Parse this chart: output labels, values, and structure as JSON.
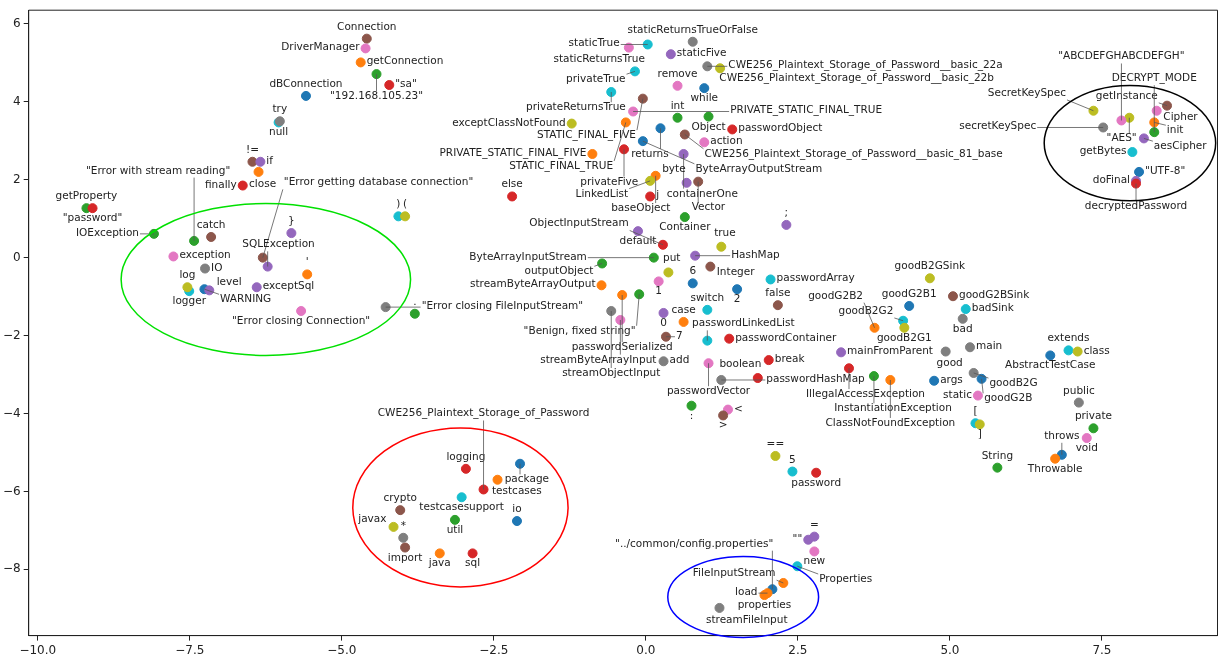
{
  "chart_data": {
    "type": "scatter",
    "marker": "circle",
    "grid": false,
    "legend": false,
    "xlim": [
      -10.15,
      9.4
    ],
    "ylim": [
      -9.7,
      6.35
    ],
    "xticks": [
      {
        "value": -10,
        "label": "−10.0"
      },
      {
        "value": -7.5,
        "label": "−7.5"
      },
      {
        "value": -5,
        "label": "−5.0"
      },
      {
        "value": -2.5,
        "label": "−2.5"
      },
      {
        "value": 0,
        "label": "0.0"
      },
      {
        "value": 2.5,
        "label": "2.5"
      },
      {
        "value": 5,
        "label": "5.0"
      },
      {
        "value": 7.5,
        "label": "7.5"
      }
    ],
    "yticks": [
      {
        "value": -8,
        "label": "−8"
      },
      {
        "value": -6,
        "label": "−6"
      },
      {
        "value": -4,
        "label": "−4"
      },
      {
        "value": -2,
        "label": "−2"
      },
      0,
      2,
      4,
      6
    ],
    "x": [
      -4.59,
      -4.61,
      -4.69,
      -4.43,
      -4.22,
      -5.59,
      -6.04,
      -6.02,
      -6.47,
      -6.34,
      -6.37,
      -6.63,
      -9.2,
      -9.1,
      -4.07,
      -3.96,
      -8.09,
      -7.43,
      -7.15,
      -5.83,
      -7.77,
      -6.3,
      -6.22,
      -7.25,
      -5.57,
      -7.51,
      -7.26,
      -7.18,
      -7.54,
      -6.4,
      -5.67,
      -4.28,
      -3.8,
      0.77,
      0.03,
      -0.28,
      0.41,
      1.01,
      1.22,
      -0.18,
      0.52,
      0.96,
      -0.57,
      -0.05,
      -0.21,
      -1.22,
      -0.33,
      0.52,
      1.03,
      1.42,
      0.24,
      0.64,
      0.96,
      -0.05,
      -0.36,
      -0.88,
      0.62,
      0.16,
      0.07,
      0.86,
      0.67,
      0.07,
      -2.2,
      0.64,
      -0.13,
      2.31,
      0.28,
      1.24,
      0.13,
      0.81,
      -0.72,
      1.06,
      0.37,
      0.21,
      0.77,
      2.05,
      1.5,
      2.17,
      -0.73,
      -0.11,
      -0.39,
      1.01,
      0.29,
      0.62,
      -0.57,
      -0.42,
      0.33,
      1.01,
      1.37,
      0.29,
      1.03,
      1.24,
      2.02,
      1.84,
      3.21,
      3.34,
      3.75,
      4.02,
      0.75,
      1.35,
      1.27,
      2.13,
      2.41,
      2.8,
      2.67,
      2.77,
      2.77,
      2.49,
      2.26,
      2.08,
      1.95,
      2.0,
      1.21,
      -2.07,
      -2.96,
      -2.44,
      -2.67,
      -3.03,
      -3.14,
      -2.12,
      -3.39,
      -2.85,
      -4.04,
      -4.15,
      -3.99,
      -3.96,
      8.57,
      8.4,
      8.36,
      8.36,
      8.19,
      8.0,
      8.11,
      8.06,
      8.06,
      7.95,
      7.82,
      7.36,
      7.52,
      4.67,
      5.05,
      4.33,
      5.26,
      5.21,
      4.23,
      4.25,
      3.76,
      4.93,
      5.33,
      6.65,
      6.95,
      7.1,
      4.74,
      5.39,
      5.52,
      5.46,
      5.42,
      5.49,
      7.12,
      7.36,
      7.25,
      6.84,
      6.73,
      5.78
    ],
    "values": [
      5.62,
      5.37,
      5.01,
      4.71,
      4.43,
      4.15,
      3.47,
      3.5,
      2.46,
      2.46,
      2.2,
      1.85,
      1.27,
      1.27,
      1.06,
      1.06,
      0.61,
      0.43,
      0.53,
      0.63,
      0.03,
      0.0,
      -0.23,
      -0.28,
      -0.43,
      -0.86,
      -0.81,
      -0.84,
      -0.76,
      -0.76,
      -1.37,
      -1.27,
      -1.44,
      5.54,
      5.47,
      5.39,
      5.22,
      4.91,
      4.86,
      4.78,
      4.41,
      4.35,
      4.25,
      4.08,
      3.75,
      3.44,
      3.47,
      3.59,
      3.62,
      3.29,
      3.32,
      3.16,
      2.96,
      2.99,
      2.78,
      2.66,
      2.66,
      2.1,
      1.97,
      1.95,
      1.92,
      1.57,
      1.57,
      1.04,
      0.68,
      0.84,
      0.33,
      0.28,
      0.0,
      0.05,
      -0.15,
      -0.23,
      -0.38,
      -0.61,
      -0.66,
      -0.56,
      -0.81,
      -1.22,
      -0.71,
      -0.94,
      -0.96,
      -1.34,
      -1.42,
      -1.65,
      -1.37,
      -1.6,
      -2.03,
      -2.13,
      -2.08,
      -2.66,
      -2.71,
      -3.14,
      -2.63,
      -3.09,
      -2.43,
      -2.84,
      -3.04,
      -3.14,
      -3.8,
      -3.9,
      -4.05,
      -5.09,
      -5.49,
      -5.52,
      -7.24,
      -7.16,
      -7.54,
      -7.92,
      -8.35,
      -8.51,
      -8.66,
      -8.61,
      -8.99,
      -5.29,
      -5.42,
      -5.7,
      -5.95,
      -6.15,
      -6.73,
      -6.76,
      -7.59,
      -7.59,
      -6.48,
      -6.91,
      -7.19,
      -7.44,
      3.9,
      3.77,
      3.47,
      3.22,
      3.06,
      2.71,
      2.2,
      1.97,
      1.9,
      3.59,
      3.52,
      3.77,
      3.34,
      -0.53,
      -0.99,
      -1.24,
      -1.32,
      -1.57,
      -1.62,
      -1.8,
      -1.8,
      -2.41,
      -2.3,
      -2.51,
      -2.38,
      -2.41,
      -3.16,
      -2.96,
      -3.11,
      -3.54,
      -4.25,
      -4.28,
      -3.72,
      -4.38,
      -4.63,
      -5.06,
      -5.16,
      -5.39
    ],
    "colors": [
      "#8c564b",
      "#e377c2",
      "#ff7f0e",
      "#2ca02c",
      "#d62728",
      "#1f77b4",
      "#17becf",
      "#7f7f7f",
      "#8c564b",
      "#9467bd",
      "#ff7f0e",
      "#d62728",
      "#2ca02c",
      "#d62728",
      "#17becf",
      "#bcbd22",
      "#2ca02c",
      "#2ca02c",
      "#8c564b",
      "#9467bd",
      "#e377c2",
      "#8c564b",
      "#9467bd",
      "#7f7f7f",
      "#ff7f0e",
      "#17becf",
      "#1f77b4",
      "#9467bd",
      "#bcbd22",
      "#9467bd",
      "#e377c2",
      "#7f7f7f",
      "#2ca02c",
      "#7f7f7f",
      "#17becf",
      "#e377c2",
      "#9467bd",
      "#7f7f7f",
      "#bcbd22",
      "#17becf",
      "#e377c2",
      "#1f77b4",
      "#17becf",
      "#8c564b",
      "#e377c2",
      "#bcbd22",
      "#ff7f0e",
      "#2ca02c",
      "#2ca02c",
      "#d62728",
      "#1f77b4",
      "#8c564b",
      "#e377c2",
      "#1f77b4",
      "#d62728",
      "#ff7f0e",
      "#9467bd",
      "#ff7f0e",
      "#bcbd22",
      "#8c564b",
      "#9467bd",
      "#d62728",
      "#d62728",
      "#2ca02c",
      "#9467bd",
      "#9467bd",
      "#d62728",
      "#bcbd22",
      "#2ca02c",
      "#9467bd",
      "#2ca02c",
      "#8c564b",
      "#bcbd22",
      "#e377c2",
      "#1f77b4",
      "#17becf",
      "#1f77b4",
      "#8c564b",
      "#ff7f0e",
      "#2ca02c",
      "#ff7f0e",
      "#17becf",
      "#9467bd",
      "#ff7f0e",
      "#7f7f7f",
      "#e377c2",
      "#8c564b",
      "#17becf",
      "#d62728",
      "#7f7f7f",
      "#e377c2",
      "#7f7f7f",
      "#d62728",
      "#d62728",
      "#9467bd",
      "#d62728",
      "#2ca02c",
      "#ff7f0e",
      "#2ca02c",
      "#e377c2",
      "#8c564b",
      "#bcbd22",
      "#17becf",
      "#d62728",
      "#9467bd",
      "#9467bd",
      "#e377c2",
      "#17becf",
      "#ff7f0e",
      "#1f77b4",
      "#ff7f0e",
      "#ff7f0e",
      "#7f7f7f",
      "#1f77b4",
      "#d62728",
      "#ff7f0e",
      "#d62728",
      "#17becf",
      "#2ca02c",
      "#1f77b4",
      "#ff7f0e",
      "#d62728",
      "#8c564b",
      "#bcbd22",
      "#7f7f7f",
      "#8c564b",
      "#8c564b",
      "#e377c2",
      "#ff7f0e",
      "#2ca02c",
      "#9467bd",
      "#17becf",
      "#1f77b4",
      "#9467bd",
      "#d62728",
      "#bcbd22",
      "#e377c2",
      "#bcbd22",
      "#7f7f7f",
      "#bcbd22",
      "#8c564b",
      "#1f77b4",
      "#17becf",
      "#7f7f7f",
      "#17becf",
      "#bcbd22",
      "#ff7f0e",
      "#7f7f7f",
      "#7f7f7f",
      "#1f77b4",
      "#17becf",
      "#bcbd22",
      "#1f77b4",
      "#7f7f7f",
      "#1f77b4",
      "#e377c2",
      "#17becf",
      "#bcbd22",
      "#7f7f7f",
      "#2ca02c",
      "#e377c2",
      "#1f77b4",
      "#ff7f0e",
      "#2ca02c"
    ],
    "annotations": [
      {
        "text": "Connection",
        "x": -4.59,
        "y": 5.62
      },
      {
        "text": "DriverManager",
        "x": -4.61,
        "y": 5.37
      },
      {
        "text": "getConnection",
        "x": -4.69,
        "y": 5.01
      },
      {
        "text": "\"192.168.105.23\"",
        "x": -4.43,
        "y": 4.71
      },
      {
        "text": "\"sa\"",
        "x": -4.22,
        "y": 4.43
      },
      {
        "text": "dBConnection",
        "x": -5.59,
        "y": 4.15
      },
      {
        "text": "null",
        "x": -6.04,
        "y": 3.47
      },
      {
        "text": "try",
        "x": -6.02,
        "y": 3.5
      },
      {
        "text": "!=",
        "x": -6.47,
        "y": 2.46
      },
      {
        "text": "if",
        "x": -6.34,
        "y": 2.46
      },
      {
        "text": "close",
        "x": -6.37,
        "y": 2.2
      },
      {
        "text": "finally",
        "x": -6.63,
        "y": 1.85
      },
      {
        "text": "getProperty",
        "x": -9.2,
        "y": 1.27
      },
      {
        "text": "\"password\"",
        "x": -9.1,
        "y": 1.27
      },
      {
        "text": ")",
        "x": -4.07,
        "y": 1.06
      },
      {
        "text": "(",
        "x": -3.96,
        "y": 1.06
      },
      {
        "text": "IOException",
        "x": -8.09,
        "y": 0.61
      },
      {
        "text": "\"Error with stream reading\"",
        "x": -7.43,
        "y": 0.43
      },
      {
        "text": "catch",
        "x": -7.15,
        "y": 0.53
      },
      {
        "text": "}",
        "x": -5.83,
        "y": 0.63
      },
      {
        "text": "exception",
        "x": -7.77,
        "y": 0.03
      },
      {
        "text": "\"Error getting database connection\"",
        "x": -6.3,
        "y": 0.0
      },
      {
        "text": "SQLException",
        "x": -6.22,
        "y": -0.23
      },
      {
        "text": "IO",
        "x": -7.25,
        "y": -0.28
      },
      {
        "text": "'",
        "x": -5.57,
        "y": -0.43
      },
      {
        "text": "logger",
        "x": -7.51,
        "y": -0.86
      },
      {
        "text": "WARNING",
        "x": -7.26,
        "y": -0.81
      },
      {
        "text": "level",
        "x": -7.18,
        "y": -0.84
      },
      {
        "text": "log",
        "x": -7.54,
        "y": -0.76
      },
      {
        "text": "exceptSql",
        "x": -6.4,
        "y": -0.76
      },
      {
        "text": "\"Error closing Connection\"",
        "x": -5.67,
        "y": -1.37
      },
      {
        "text": "\"Error closing FileInputStream\"",
        "x": -4.28,
        "y": -1.27
      },
      {
        "text": ".",
        "x": -3.8,
        "y": -1.44
      },
      {
        "text": "staticReturnsTrueOrFalse",
        "x": 0.77,
        "y": 5.54
      },
      {
        "text": "staticTrue",
        "x": 0.03,
        "y": 5.47
      },
      {
        "text": "staticReturnsTrue",
        "x": -0.28,
        "y": 5.39
      },
      {
        "text": "staticFive",
        "x": 0.41,
        "y": 5.22
      },
      {
        "text": "CWE256_Plaintext_Storage_of_Password__basic_22a",
        "x": 1.01,
        "y": 4.91
      },
      {
        "text": "CWE256_Plaintext_Storage_of_Password__basic_22b",
        "x": 1.22,
        "y": 4.86
      },
      {
        "text": "privateTrue",
        "x": -0.18,
        "y": 4.78
      },
      {
        "text": "remove",
        "x": 0.52,
        "y": 4.41
      },
      {
        "text": "while",
        "x": 0.96,
        "y": 4.35
      },
      {
        "text": "privateReturnsTrue",
        "x": -0.57,
        "y": 4.25
      },
      {
        "text": "STATIC_FINAL_FIVE",
        "x": -0.05,
        "y": 4.08
      },
      {
        "text": "PRIVATE_STATIC_FINAL_TRUE",
        "x": -0.21,
        "y": 3.75
      },
      {
        "text": "exceptClassNotFound",
        "x": -1.22,
        "y": 3.44
      },
      {
        "text": "STATIC_FINAL_TRUE",
        "x": -0.33,
        "y": 3.47
      },
      {
        "text": "int",
        "x": 0.52,
        "y": 3.59
      },
      {
        "text": "Object",
        "x": 1.03,
        "y": 3.62
      },
      {
        "text": "passwordObject",
        "x": 1.42,
        "y": 3.29
      },
      {
        "text": "returns",
        "x": 0.24,
        "y": 3.32
      },
      {
        "text": "CWE256_Plaintext_Storage_of_Password__basic_81_base",
        "x": 0.64,
        "y": 3.16
      },
      {
        "text": "action",
        "x": 0.96,
        "y": 2.96
      },
      {
        "text": "ByteArrayOutputStream",
        "x": -0.05,
        "y": 2.99
      },
      {
        "text": "privateFive",
        "x": -0.36,
        "y": 2.78
      },
      {
        "text": "PRIVATE_STATIC_FINAL_FIVE",
        "x": -0.88,
        "y": 2.66
      },
      {
        "text": "containerOne",
        "x": 0.62,
        "y": 2.66
      },
      {
        "text": "baseObject",
        "x": 0.16,
        "y": 2.1
      },
      {
        "text": "LinkedList",
        "x": 0.07,
        "y": 1.97
      },
      {
        "text": "Vector",
        "x": 0.86,
        "y": 1.95
      },
      {
        "text": "byte",
        "x": 0.67,
        "y": 1.92
      },
      {
        "text": "j",
        "x": 0.07,
        "y": 1.57
      },
      {
        "text": "else",
        "x": -2.2,
        "y": 1.57
      },
      {
        "text": "Container",
        "x": 0.64,
        "y": 1.04
      },
      {
        "text": "default",
        "x": -0.13,
        "y": 0.68
      },
      {
        "text": ";",
        "x": 2.31,
        "y": 0.84
      },
      {
        "text": "ObjectInputStream",
        "x": 0.28,
        "y": 0.33
      },
      {
        "text": "true",
        "x": 1.24,
        "y": 0.28
      },
      {
        "text": "ByteArrayInputStream",
        "x": 0.13,
        "y": 0.0
      },
      {
        "text": "HashMap",
        "x": 0.81,
        "y": 0.05
      },
      {
        "text": "outputObject",
        "x": -0.72,
        "y": -0.15
      },
      {
        "text": "Integer",
        "x": 1.06,
        "y": -0.23
      },
      {
        "text": "put",
        "x": 0.37,
        "y": -0.38
      },
      {
        "text": "1",
        "x": 0.21,
        "y": -0.61
      },
      {
        "text": "6",
        "x": 0.77,
        "y": -0.66
      },
      {
        "text": "passwordArray",
        "x": 2.05,
        "y": -0.56
      },
      {
        "text": "2",
        "x": 1.5,
        "y": -0.81
      },
      {
        "text": "false",
        "x": 2.17,
        "y": -1.22
      },
      {
        "text": "streamByteArrayOutput",
        "x": -0.73,
        "y": -0.71
      },
      {
        "text": "\"Benign, fixed string\"",
        "x": -0.11,
        "y": -0.94
      },
      {
        "text": "passwordSerialized",
        "x": -0.39,
        "y": -0.96
      },
      {
        "text": "switch",
        "x": 1.01,
        "y": -1.34
      },
      {
        "text": "0",
        "x": 0.29,
        "y": -1.42
      },
      {
        "text": "case",
        "x": 0.62,
        "y": -1.65
      },
      {
        "text": "streamObjectInput",
        "x": -0.57,
        "y": -1.37
      },
      {
        "text": "streamByteArrayInput",
        "x": -0.42,
        "y": -1.6
      },
      {
        "text": "7",
        "x": 0.33,
        "y": -2.03
      },
      {
        "text": "passwordLinkedList",
        "x": 1.01,
        "y": -2.13
      },
      {
        "text": "passwordContainer",
        "x": 1.37,
        "y": -2.08
      },
      {
        "text": "add",
        "x": 0.29,
        "y": -2.66
      },
      {
        "text": "passwordVector",
        "x": 1.03,
        "y": -2.71
      },
      {
        "text": "passwordHashMap",
        "x": 1.24,
        "y": -3.14
      },
      {
        "text": "break",
        "x": 2.02,
        "y": -2.63
      },
      {
        "text": "boolean",
        "x": 1.84,
        "y": -3.09
      },
      {
        "text": "mainFromParent",
        "x": 3.21,
        "y": -2.43
      },
      {
        "text": "IllegalAccessException",
        "x": 3.34,
        "y": -2.84
      },
      {
        "text": "InstantiationException",
        "x": 3.75,
        "y": -3.04
      },
      {
        "text": "ClassNotFoundException",
        "x": 4.02,
        "y": -3.14
      },
      {
        "text": ":",
        "x": 0.75,
        "y": -3.8
      },
      {
        "text": "<",
        "x": 1.35,
        "y": -3.9
      },
      {
        "text": ">",
        "x": 1.27,
        "y": -4.05
      },
      {
        "text": "==",
        "x": 2.13,
        "y": -5.09
      },
      {
        "text": "5",
        "x": 2.41,
        "y": -5.49
      },
      {
        "text": "password",
        "x": 2.8,
        "y": -5.52
      },
      {
        "text": "\"\"",
        "x": 2.67,
        "y": -7.24
      },
      {
        "text": "=",
        "x": 2.77,
        "y": -7.16
      },
      {
        "text": "new",
        "x": 2.77,
        "y": -7.54
      },
      {
        "text": "Properties",
        "x": 2.49,
        "y": -7.92
      },
      {
        "text": "FileInputStream",
        "x": 2.26,
        "y": -8.35
      },
      {
        "text": "\"../common/config.properties\"",
        "x": 2.08,
        "y": -8.51
      },
      {
        "text": "properties",
        "x": 1.95,
        "y": -8.66
      },
      {
        "text": "load",
        "x": 2.0,
        "y": -8.61
      },
      {
        "text": "streamFileInput",
        "x": 1.21,
        "y": -8.99
      },
      {
        "text": "package",
        "x": -2.07,
        "y": -5.29
      },
      {
        "text": "logging",
        "x": -2.96,
        "y": -5.42
      },
      {
        "text": "testcases",
        "x": -2.44,
        "y": -5.7
      },
      {
        "text": "CWE256_Plaintext_Storage_of_Password",
        "x": -2.67,
        "y": -5.95
      },
      {
        "text": "testcasesupport",
        "x": -3.03,
        "y": -6.15
      },
      {
        "text": "util",
        "x": -3.14,
        "y": -6.73
      },
      {
        "text": "io",
        "x": -2.12,
        "y": -6.76
      },
      {
        "text": "java",
        "x": -3.39,
        "y": -7.59
      },
      {
        "text": "sql",
        "x": -2.85,
        "y": -7.59
      },
      {
        "text": "crypto",
        "x": -4.04,
        "y": -6.48
      },
      {
        "text": "javax",
        "x": -4.15,
        "y": -6.91
      },
      {
        "text": "*",
        "x": -3.99,
        "y": -7.19
      },
      {
        "text": "import",
        "x": -3.96,
        "y": -7.44
      },
      {
        "text": "getInstance",
        "x": 8.57,
        "y": 3.9
      },
      {
        "text": "Cipher",
        "x": 8.4,
        "y": 3.77
      },
      {
        "text": "init",
        "x": 8.36,
        "y": 3.47
      },
      {
        "text": "DECRYPT_MODE",
        "x": 8.36,
        "y": 3.22
      },
      {
        "text": "aesCipher",
        "x": 8.19,
        "y": 3.06
      },
      {
        "text": "getBytes",
        "x": 8.0,
        "y": 2.71
      },
      {
        "text": "\"UTF-8\"",
        "x": 8.11,
        "y": 2.2
      },
      {
        "text": "doFinal",
        "x": 8.06,
        "y": 1.97
      },
      {
        "text": "decryptedPassword",
        "x": 8.06,
        "y": 1.9
      },
      {
        "text": "\"AES\"",
        "x": 7.95,
        "y": 3.59
      },
      {
        "text": "\"ABCDEFGHABCDEFGH\"",
        "x": 7.82,
        "y": 3.52
      },
      {
        "text": "SecretKeySpec",
        "x": 7.36,
        "y": 3.77
      },
      {
        "text": "secretKeySpec",
        "x": 7.52,
        "y": 3.34
      },
      {
        "text": "goodB2GSink",
        "x": 4.67,
        "y": -0.53
      },
      {
        "text": "goodG2BSink",
        "x": 5.05,
        "y": -0.99
      },
      {
        "text": "goodG2B1",
        "x": 4.33,
        "y": -1.24
      },
      {
        "text": "badSink",
        "x": 5.26,
        "y": -1.32
      },
      {
        "text": "bad",
        "x": 5.21,
        "y": -1.57
      },
      {
        "text": "goodB2G2",
        "x": 4.23,
        "y": -1.62
      },
      {
        "text": "goodB2G1",
        "x": 4.25,
        "y": -1.8
      },
      {
        "text": "goodG2B2",
        "x": 3.76,
        "y": -1.8
      },
      {
        "text": "good",
        "x": 4.93,
        "y": -2.41
      },
      {
        "text": "main",
        "x": 5.33,
        "y": -2.3
      },
      {
        "text": "AbstractTestCase",
        "x": 6.65,
        "y": -2.51
      },
      {
        "text": "extends",
        "x": 6.95,
        "y": -2.38
      },
      {
        "text": "class",
        "x": 7.1,
        "y": -2.41
      },
      {
        "text": "args",
        "x": 4.74,
        "y": -3.16
      },
      {
        "text": "goodB2G",
        "x": 5.39,
        "y": -2.96
      },
      {
        "text": "goodG2B",
        "x": 5.52,
        "y": -3.11
      },
      {
        "text": "static",
        "x": 5.46,
        "y": -3.54
      },
      {
        "text": "[",
        "x": 5.42,
        "y": -4.25
      },
      {
        "text": "]",
        "x": 5.49,
        "y": -4.28
      },
      {
        "text": "public",
        "x": 7.12,
        "y": -3.72
      },
      {
        "text": "private",
        "x": 7.36,
        "y": -4.38
      },
      {
        "text": "void",
        "x": 7.25,
        "y": -4.63
      },
      {
        "text": "throws",
        "x": 6.84,
        "y": -5.06
      },
      {
        "text": "Throwable",
        "x": 6.73,
        "y": -5.16
      },
      {
        "text": "String",
        "x": 5.78,
        "y": -5.39
      }
    ]
  }
}
